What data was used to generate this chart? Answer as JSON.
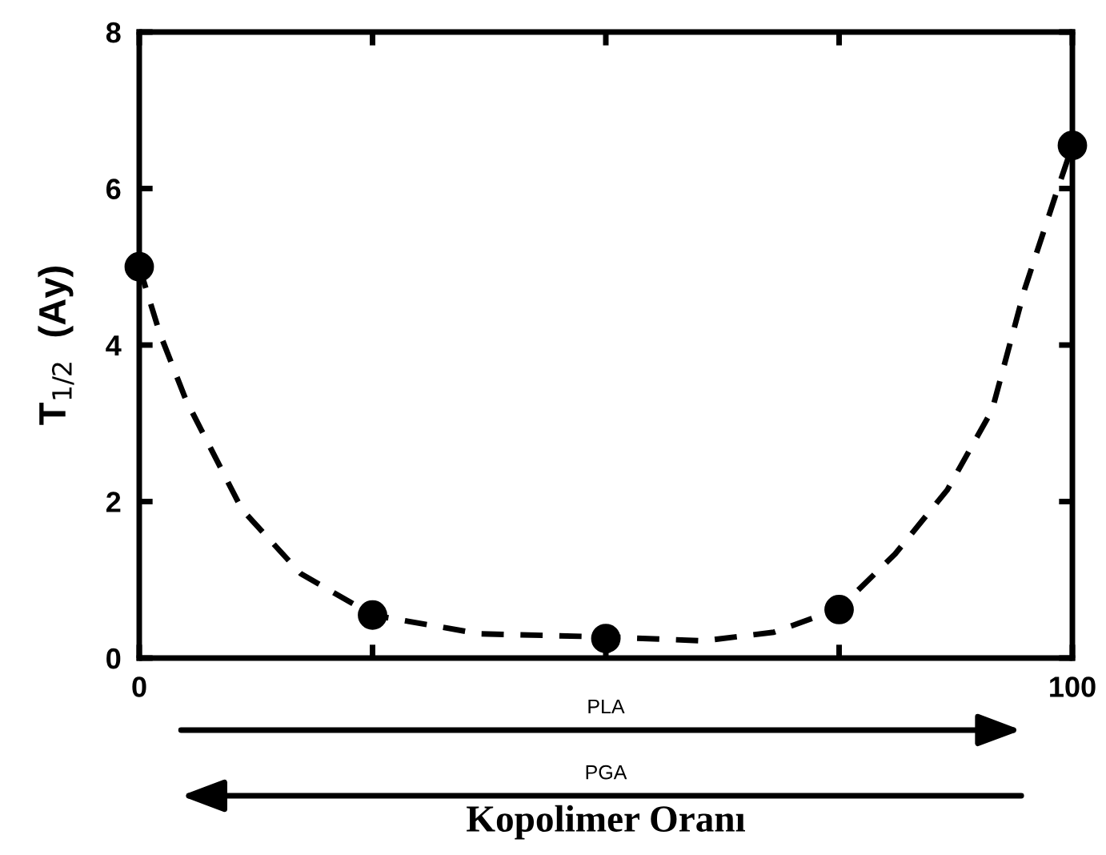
{
  "chart_data": {
    "type": "scatter",
    "xlabel": "Kopolimer Oranı",
    "ylabel": "T$_{1/2}$  (Ay)",
    "xlim": [
      0,
      100
    ],
    "xticks": [
      0,
      {
        "value": 25,
        "label": null
      },
      {
        "value": 50,
        "label": null
      },
      {
        "value": 75,
        "label": null
      },
      100
    ],
    "ylim": [
      0,
      8
    ],
    "yticks": [
      0,
      2,
      4,
      6,
      8
    ],
    "grid": false,
    "series": [
      {
        "type": "line",
        "color": "#000000",
        "line_style": "dashed",
        "marker": "none",
        "x": [
          0,
          2.2,
          5,
          11,
          17.3,
          25,
          36.5,
          50,
          60.5,
          68,
          75,
          81,
          86.6,
          91.4,
          94.9,
          98.3,
          100
        ],
        "values": [
          5.0,
          4.15,
          3.3,
          1.9,
          1.08,
          0.55,
          0.31,
          0.27,
          0.22,
          0.33,
          0.63,
          1.33,
          2.15,
          3.17,
          4.72,
          5.95,
          6.55
        ]
      },
      {
        "color": "#000000",
        "marker": "circle",
        "x": [
          0,
          25,
          50,
          75,
          100
        ],
        "values": [
          5.0,
          0.55,
          0.25,
          0.62,
          6.55
        ]
      }
    ],
    "annotations": [
      "PLA",
      "PGA"
    ]
  }
}
